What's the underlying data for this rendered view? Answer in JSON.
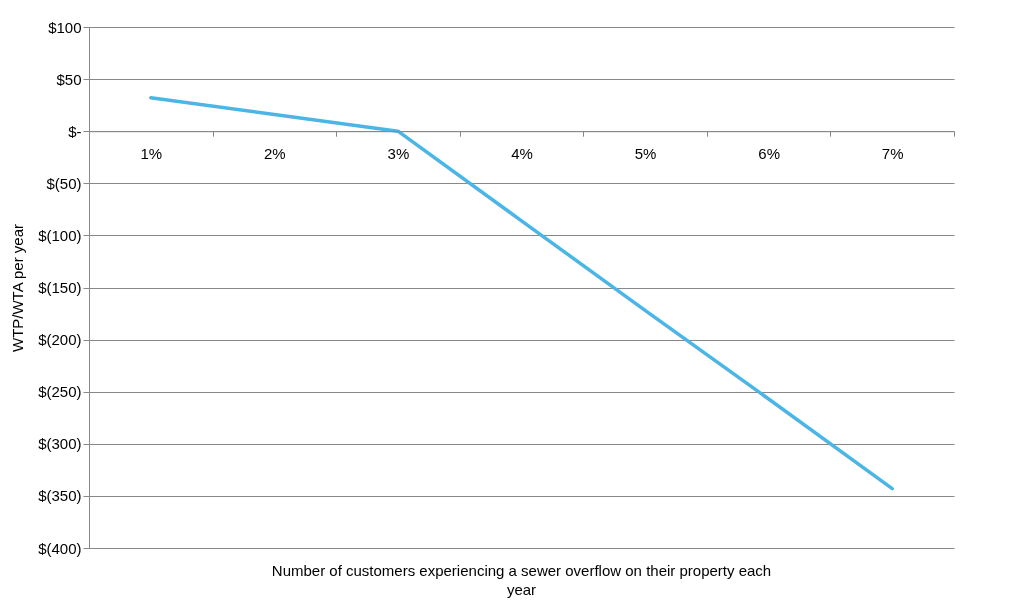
{
  "chart_data": {
    "type": "line",
    "xlabel": "Number of customers experiencing a sewer overflow on their property each year",
    "ylabel": "WTP/WTA per year",
    "categories": [
      "1%",
      "2%",
      "3%",
      "4%",
      "5%",
      "6%",
      "7%"
    ],
    "series": [
      {
        "color": "#4bb6e6",
        "values": [
          32,
          16,
          0,
          -86,
          -172,
          -257,
          -343
        ]
      }
    ],
    "ylim": [
      -400,
      100
    ],
    "yticks": [
      {
        "value": 100,
        "label": "$100"
      },
      {
        "value": 50,
        "label": "$50"
      },
      {
        "value": 0,
        "label": "$-"
      },
      {
        "value": -50,
        "label": "$(50)"
      },
      {
        "value": -100,
        "label": "$(100)"
      },
      {
        "value": -150,
        "label": "$(150)"
      },
      {
        "value": -200,
        "label": "$(200)"
      },
      {
        "value": -250,
        "label": "$(250)"
      },
      {
        "value": -300,
        "label": "$(300)"
      },
      {
        "value": -350,
        "label": "$(350)"
      },
      {
        "value": -400,
        "label": "$(400)"
      }
    ],
    "grid": "y",
    "marker": "none",
    "line_style": "solid"
  }
}
